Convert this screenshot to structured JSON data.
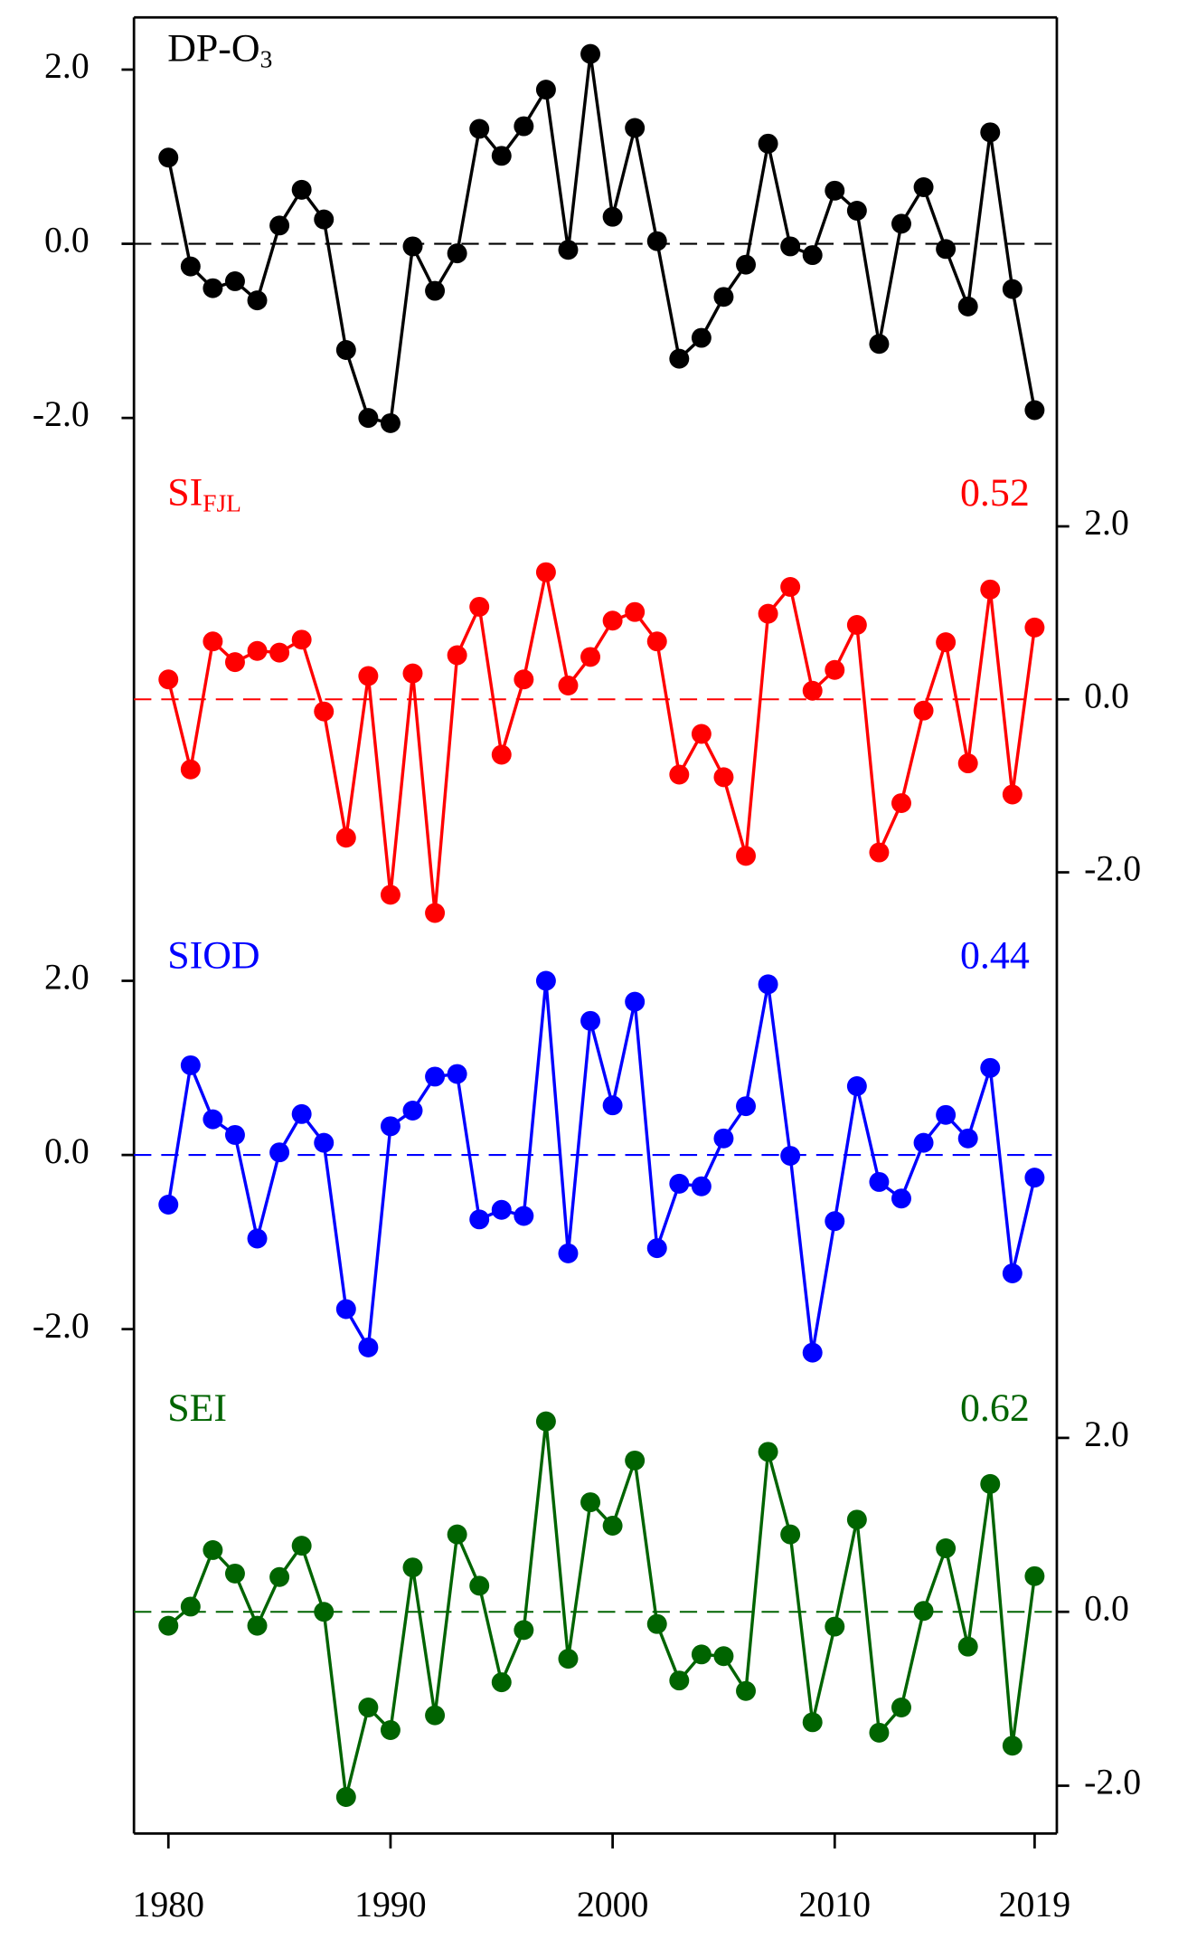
{
  "chart_data": [
    {
      "type": "line",
      "label": "DP-O",
      "label_sub": "3",
      "color": "#000000",
      "y_axis_side": "left",
      "x": [
        1980,
        1981,
        1982,
        1983,
        1984,
        1985,
        1986,
        1987,
        1988,
        1989,
        1990,
        1991,
        1992,
        1993,
        1994,
        1995,
        1996,
        1997,
        1998,
        1999,
        2000,
        2001,
        2002,
        2003,
        2004,
        2005,
        2006,
        2007,
        2008,
        2009,
        2010,
        2011,
        2012,
        2013,
        2014,
        2015,
        2016,
        2017,
        2018,
        2019
      ],
      "values": [
        0.99,
        -0.26,
        -0.51,
        -0.43,
        -0.65,
        0.21,
        0.62,
        0.28,
        -1.22,
        -2.0,
        -2.06,
        -0.03,
        -0.54,
        -0.11,
        1.32,
        1.01,
        1.35,
        1.77,
        -0.07,
        2.18,
        0.31,
        1.33,
        0.03,
        -1.32,
        -1.08,
        -0.61,
        -0.24,
        1.15,
        -0.03,
        -0.13,
        0.61,
        0.38,
        -1.15,
        0.23,
        0.65,
        -0.06,
        -0.72,
        1.28,
        -0.52,
        -1.91
      ],
      "ylim": [
        -2.5,
        2.6
      ],
      "yticks": [
        {
          "value": 2,
          "label": "2.0"
        },
        {
          "value": 0,
          "label": "0.0"
        },
        {
          "value": -2,
          "label": "-2.0"
        }
      ]
    },
    {
      "type": "line",
      "label": "SI",
      "label_sub": "FJL",
      "r": 0.52,
      "color": "#ff0000",
      "y_axis_side": "right",
      "x": [
        1980,
        1981,
        1982,
        1983,
        1984,
        1985,
        1986,
        1987,
        1988,
        1989,
        1990,
        1991,
        1992,
        1993,
        1994,
        1995,
        1996,
        1997,
        1998,
        1999,
        2000,
        2001,
        2002,
        2003,
        2004,
        2005,
        2006,
        2007,
        2008,
        2009,
        2010,
        2011,
        2012,
        2013,
        2014,
        2015,
        2016,
        2017,
        2018,
        2019
      ],
      "values": [
        0.23,
        -0.81,
        0.67,
        0.43,
        0.56,
        0.54,
        0.69,
        -0.14,
        -1.6,
        0.27,
        -2.26,
        0.3,
        -2.47,
        0.51,
        1.07,
        -0.64,
        0.23,
        1.47,
        0.16,
        0.49,
        0.91,
        1.01,
        0.67,
        -0.87,
        -0.4,
        -0.9,
        -1.81,
        0.99,
        1.3,
        0.1,
        0.34,
        0.86,
        -1.77,
        -1.2,
        -0.13,
        0.66,
        -0.74,
        1.27,
        -1.1,
        0.83
      ],
      "ylim": [
        -2.6,
        2.75
      ],
      "yticks": [
        {
          "value": 2,
          "label": "2.0"
        },
        {
          "value": 0,
          "label": "0.0"
        },
        {
          "value": -2,
          "label": "-2.0"
        }
      ]
    },
    {
      "type": "line",
      "label": "SIOD",
      "r": 0.44,
      "color": "#0000ff",
      "y_axis_side": "left",
      "x": [
        1980,
        1981,
        1982,
        1983,
        1984,
        1985,
        1986,
        1987,
        1988,
        1989,
        1990,
        1991,
        1992,
        1993,
        1994,
        1995,
        1996,
        1997,
        1998,
        1999,
        2000,
        2001,
        2002,
        2003,
        2004,
        2005,
        2006,
        2007,
        2008,
        2009,
        2010,
        2011,
        2012,
        2013,
        2014,
        2015,
        2016,
        2017,
        2018,
        2019
      ],
      "values": [
        -0.57,
        1.03,
        0.41,
        0.23,
        -0.96,
        0.03,
        0.47,
        0.14,
        -1.77,
        -2.21,
        0.33,
        0.51,
        0.9,
        0.93,
        -0.74,
        -0.63,
        -0.7,
        2.0,
        -1.13,
        1.54,
        0.57,
        1.76,
        -1.07,
        -0.33,
        -0.36,
        0.19,
        0.56,
        1.96,
        -0.01,
        -2.27,
        -0.76,
        0.79,
        -0.31,
        -0.5,
        0.14,
        0.46,
        0.19,
        1.0,
        -1.36,
        -0.26
      ],
      "ylim": [
        -2.55,
        2.65
      ],
      "yticks": [
        {
          "value": 2,
          "label": "2.0"
        },
        {
          "value": 0,
          "label": "0.0"
        },
        {
          "value": -2,
          "label": "-2.0"
        }
      ]
    },
    {
      "type": "line",
      "label": "SEI",
      "r": 0.62,
      "color": "#006400",
      "y_axis_side": "right",
      "x": [
        1980,
        1981,
        1982,
        1983,
        1984,
        1985,
        1986,
        1987,
        1988,
        1989,
        1990,
        1991,
        1992,
        1993,
        1994,
        1995,
        1996,
        1997,
        1998,
        1999,
        2000,
        2001,
        2002,
        2003,
        2004,
        2005,
        2006,
        2007,
        2008,
        2009,
        2010,
        2011,
        2012,
        2013,
        2014,
        2015,
        2016,
        2017,
        2018,
        2019
      ],
      "values": [
        -0.16,
        0.06,
        0.71,
        0.44,
        -0.16,
        0.4,
        0.76,
        0.0,
        -2.13,
        -1.1,
        -1.36,
        0.51,
        -1.19,
        0.89,
        0.3,
        -0.81,
        -0.21,
        2.19,
        -0.54,
        1.26,
        0.99,
        1.74,
        -0.14,
        -0.79,
        -0.49,
        -0.51,
        -0.91,
        1.84,
        0.89,
        -1.27,
        -0.17,
        1.06,
        -1.39,
        -1.1,
        0.01,
        0.73,
        -0.4,
        1.47,
        -1.54,
        0.41
      ],
      "ylim": [
        -2.55,
        2.7
      ],
      "yticks": [
        {
          "value": 2,
          "label": "2.0"
        },
        {
          "value": 0,
          "label": "0.0"
        },
        {
          "value": -2,
          "label": "-2.0"
        }
      ],
      "xlim": [
        1978.45,
        2020.0
      ],
      "xticks": [
        1980,
        1990,
        2000,
        2010,
        2019
      ]
    }
  ]
}
